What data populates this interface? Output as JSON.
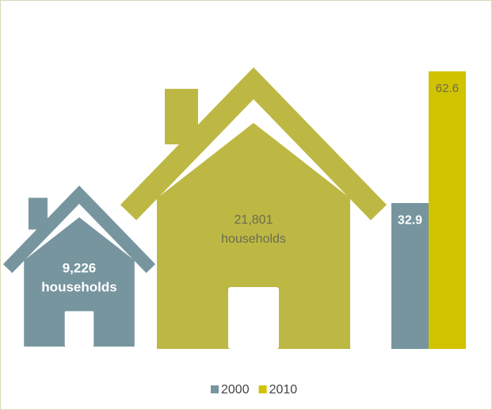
{
  "chart_data": {
    "type": "bar",
    "houses": [
      {
        "value": 9226,
        "value_label": "9,226",
        "text": "households",
        "color": "#76959f"
      },
      {
        "value": 21801,
        "value_label": "21,801",
        "text": "households",
        "color": "#bdb843"
      }
    ],
    "series": [
      {
        "name": "2000",
        "color": "#76959f",
        "values": [
          32.9
        ]
      },
      {
        "name": "2010",
        "color": "#d2c300",
        "values": [
          62.6
        ]
      }
    ],
    "legend": "bottom"
  }
}
